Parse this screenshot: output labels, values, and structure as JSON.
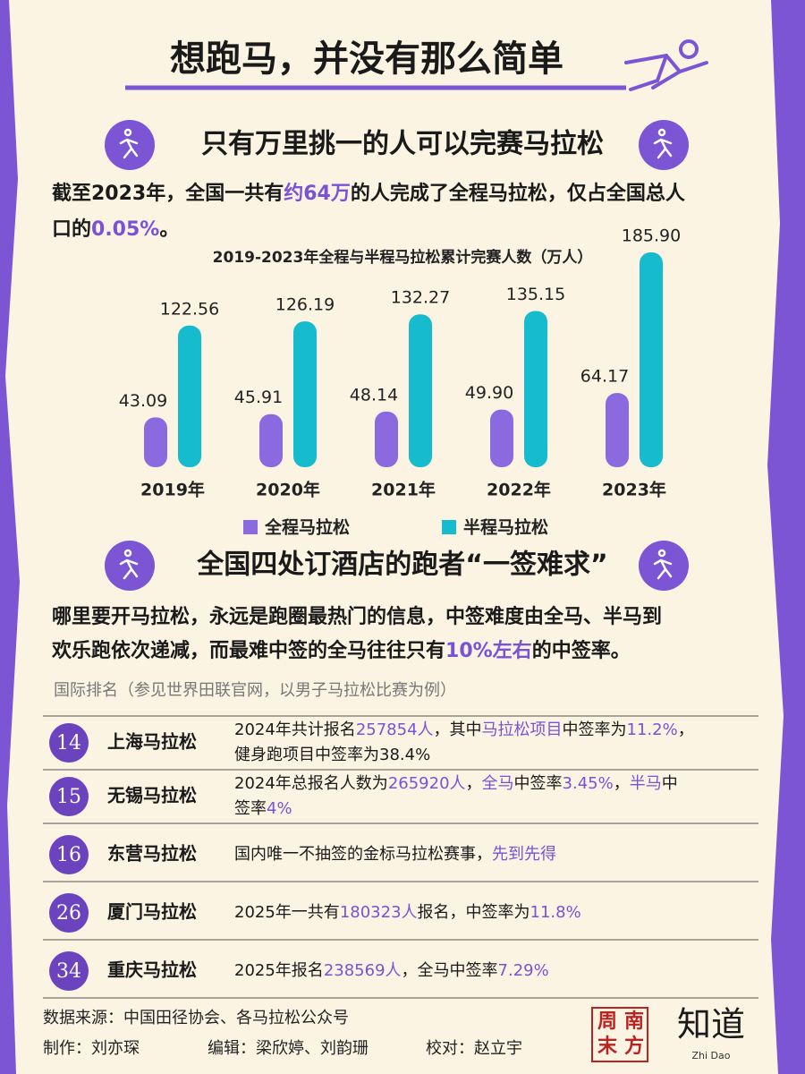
{
  "title": "想跑马，并没有那么简单",
  "section1": {
    "heading": "只有万里挑一的人可以完赛马拉松",
    "paragraph": [
      [
        "截至2023年，全国一共有",
        "约64万",
        "的人完成了全程马拉松，仅占全国总人"
      ],
      [
        "口的",
        "0.05%",
        "。"
      ]
    ]
  },
  "chart_data": {
    "type": "bar",
    "title": "2019-2023年全程与半程马拉松累计完赛人数（万人）",
    "categories": [
      "2019年",
      "2020年",
      "2021年",
      "2022年",
      "2023年"
    ],
    "series": [
      {
        "name": "全程马拉松",
        "color": "#8b6ae0",
        "values": [
          43.09,
          45.91,
          48.14,
          49.9,
          64.17
        ],
        "value_labels": [
          "43.09",
          "45.91",
          "48.14",
          "49.90",
          "64.17"
        ]
      },
      {
        "name": "半程马拉松",
        "color": "#16bccd",
        "values": [
          122.56,
          126.19,
          132.27,
          135.15,
          185.9
        ],
        "value_labels": [
          "122.56",
          "126.19",
          "132.27",
          "135.15",
          "185.90"
        ]
      }
    ]
  },
  "section2": {
    "heading": "全国四处订酒店的跑者“一签难求”",
    "paragraph": [
      [
        "哪里要开马拉松，永远是跑圈最热门的信息，中签难度由全马、半马到"
      ],
      [
        "欢乐跑依次递减，而最难中签的全马往往只有",
        "10%左右",
        "的中签率。"
      ]
    ],
    "note": "国际排名（参见世界田联官网，以男子马拉松比赛为例）"
  },
  "table": {
    "rows": [
      {
        "rank": 14,
        "name": "上海马拉松",
        "desc": [
          [
            "2024年共计报名",
            "257854人",
            "，其中",
            "马拉松项目",
            "中签率为",
            "11.2%",
            "，"
          ],
          [
            "健身跑项目中签率为38.4%"
          ]
        ]
      },
      {
        "rank": 15,
        "name": "无锡马拉松",
        "desc": [
          [
            "2024年总报名人数为",
            "265920人",
            "，",
            "全马",
            "中签率",
            "3.45%",
            "，",
            "半马",
            "中"
          ],
          [
            "签率",
            "4%"
          ]
        ]
      },
      {
        "rank": 16,
        "name": "东营马拉松",
        "desc": [
          [
            "国内唯一不抽签的金标马拉松赛事，",
            "先到先得"
          ]
        ]
      },
      {
        "rank": 26,
        "name": "厦门马拉松",
        "desc": [
          [
            "2025年一共有",
            "180323人",
            "报名，中签率为",
            "11.8%"
          ]
        ]
      },
      {
        "rank": 34,
        "name": "重庆马拉松",
        "desc": [
          [
            "2025年报名",
            "238569人",
            "，全马中签率",
            "7.29%"
          ]
        ]
      }
    ]
  },
  "footer": {
    "source": "数据来源：中国田径协会、各马拉松公众号",
    "credits": [
      "制作：刘亦琛",
      "编辑：梁欣婷、刘韵珊",
      "校对：赵立宇"
    ],
    "logo1": [
      "南",
      "方",
      "周",
      "末"
    ],
    "logo2": "知道",
    "logo2_sub": "Zhi Dao"
  }
}
